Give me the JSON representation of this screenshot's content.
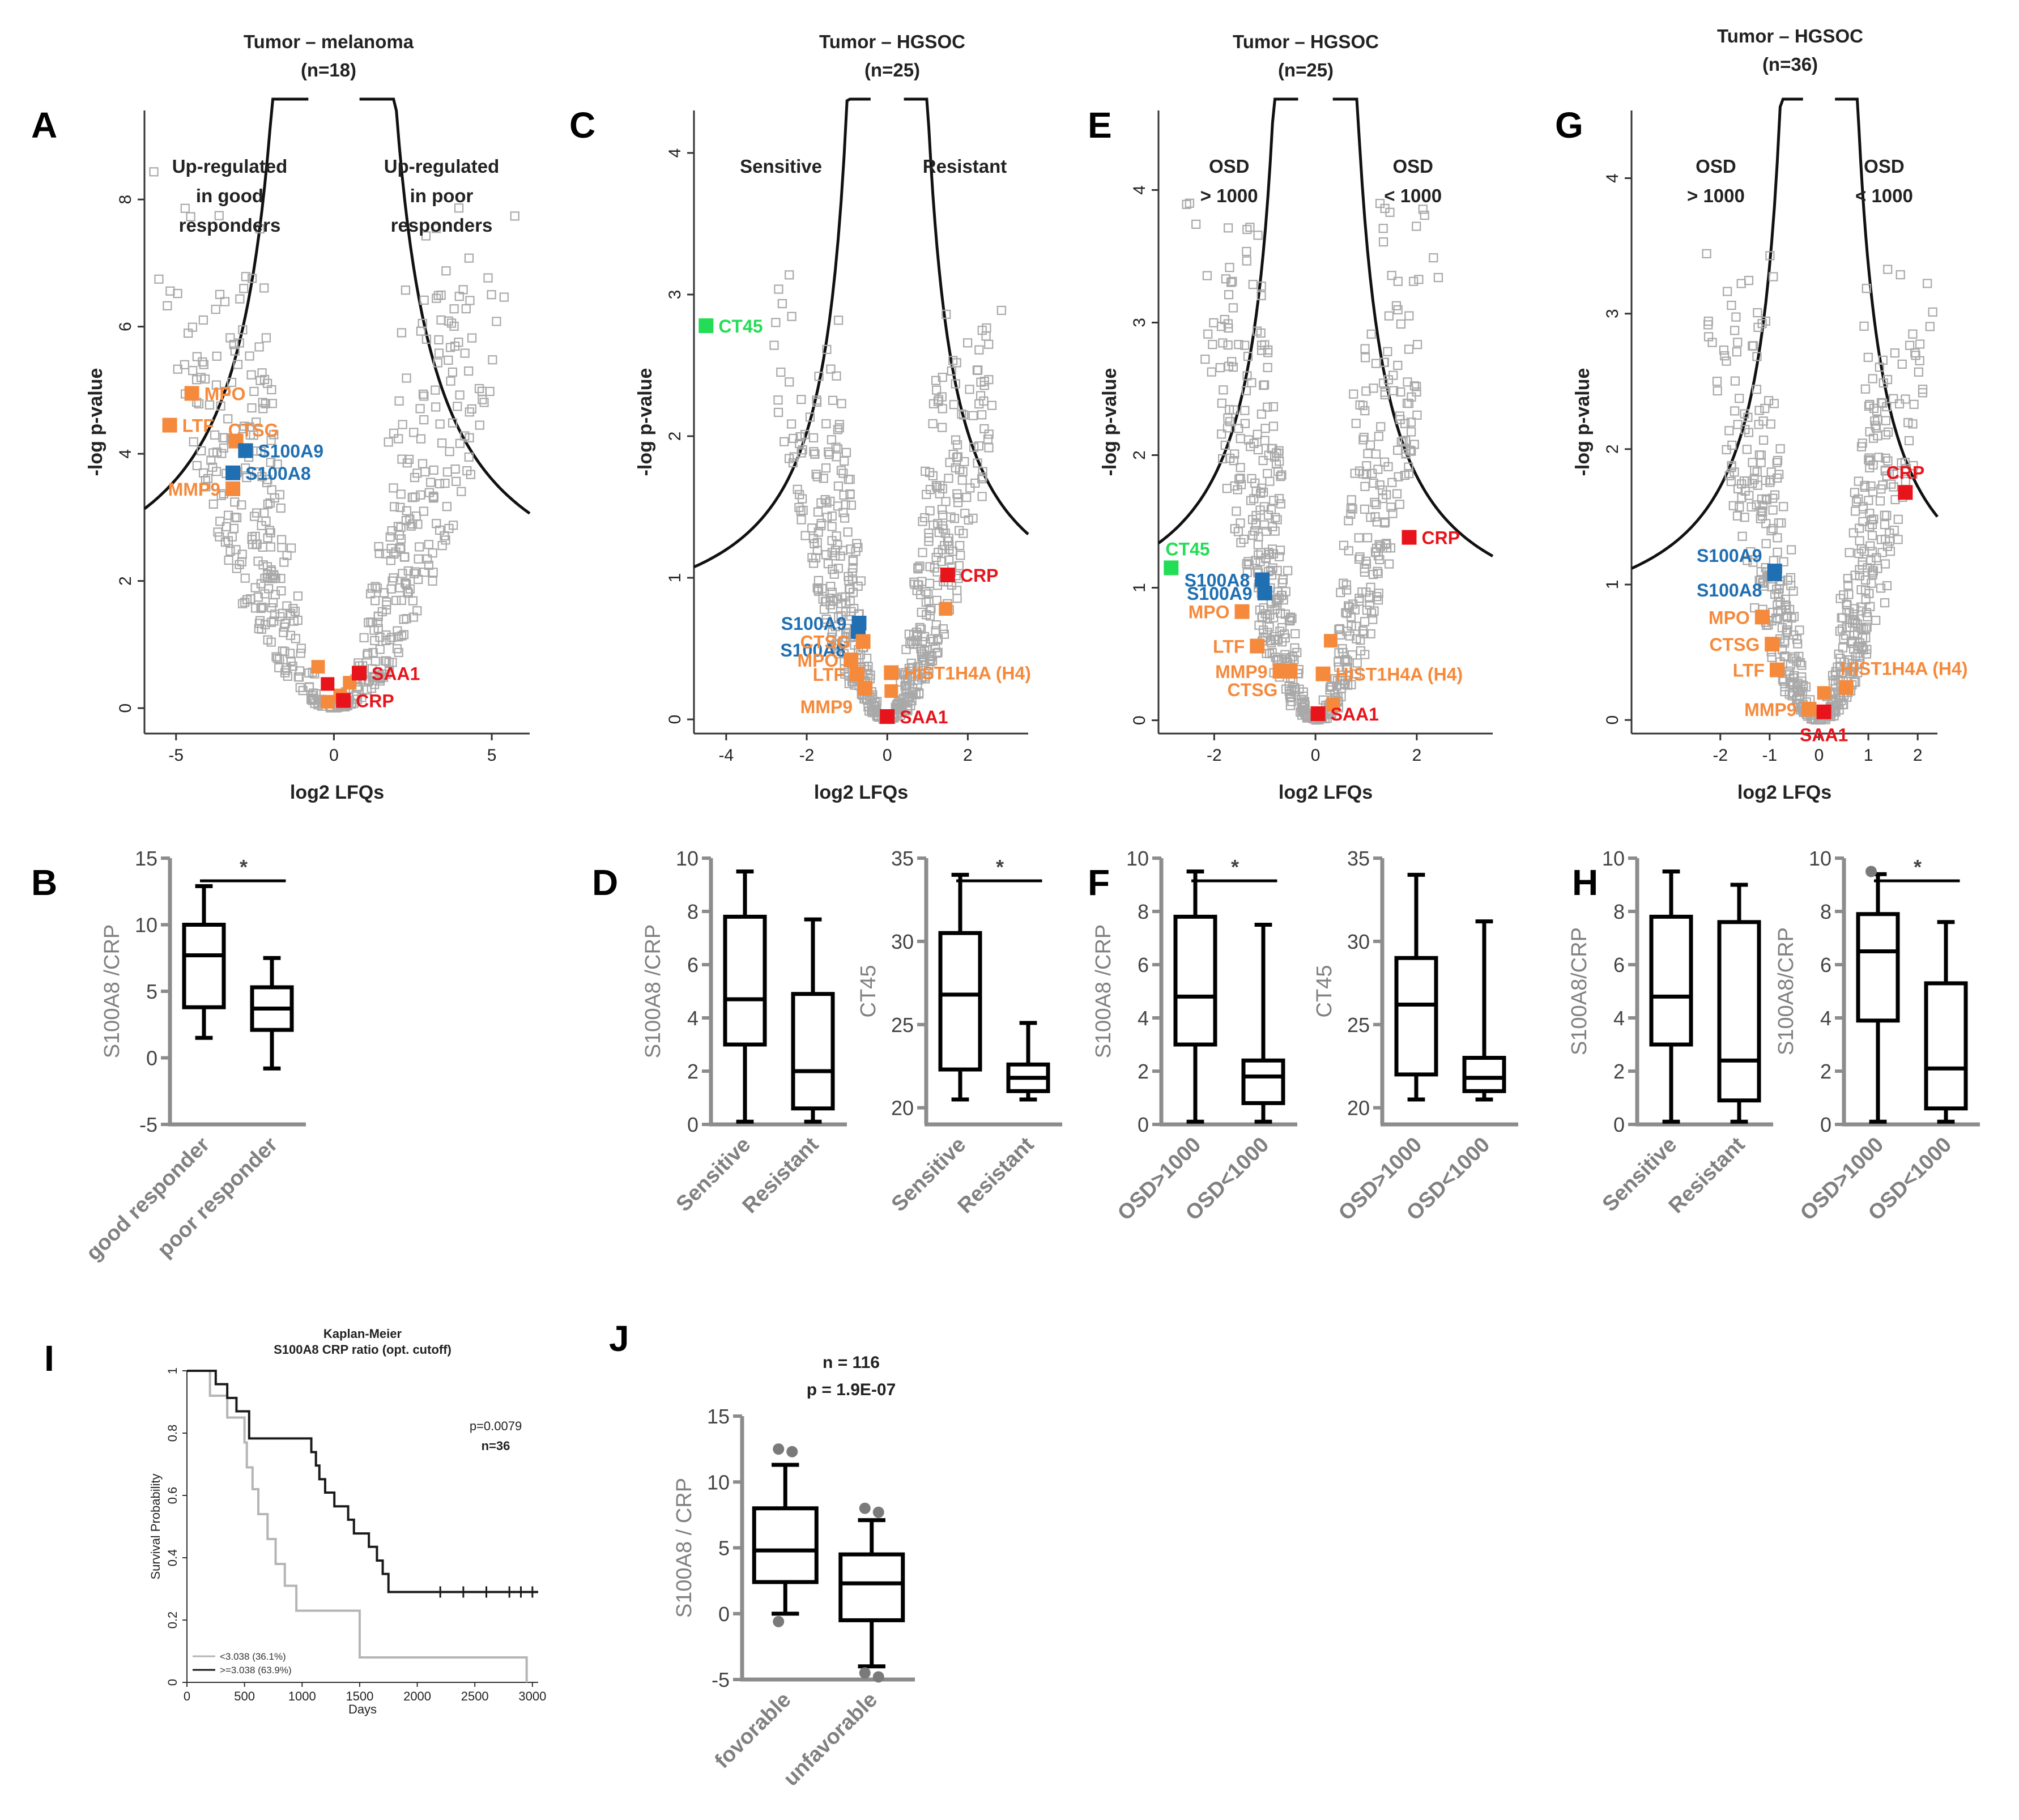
{
  "figure_labels": {
    "A": "A",
    "B": "B",
    "C": "C",
    "D": "D",
    "E": "E",
    "F": "F",
    "G": "G",
    "H": "H",
    "I": "I",
    "J": "J"
  },
  "titles": {
    "A": {
      "line1": "Tumor – melanoma",
      "line2": "(n=18)"
    },
    "C": {
      "line1": "Tumor – HGSOC",
      "line2": "(n=25)"
    },
    "E": {
      "line1": "Tumor – HGSOC",
      "line2": "(n=25)"
    },
    "G": {
      "line1": "Tumor – HGSOC",
      "line2": "(n=36)"
    }
  },
  "colors": {
    "grey": "#a9a9a9",
    "orange": "#f58a3c",
    "blue": "#1f6fb2",
    "red": "#e8141c",
    "green": "#22dd55",
    "axis_grey": "#8c8c8c",
    "km_light": "#b5b5b5",
    "km_dark": "#1a1a1a"
  },
  "chart_data": [
    {
      "id": "A",
      "type": "scatter",
      "subtype": "volcano",
      "xlabel": "log2 LFQs",
      "ylabel": "-log p-value",
      "xlim": [
        -6,
        6.2
      ],
      "ylim": [
        -0.4,
        9.4
      ],
      "xticks": [
        -5,
        0,
        5
      ],
      "yticks": [
        0,
        2,
        4,
        6,
        8
      ],
      "regions": {
        "left": [
          "Up-regulated",
          "in good",
          "responders"
        ],
        "right": [
          "Up-regulated",
          "in poor",
          "responders"
        ]
      },
      "cloud": {
        "shape": "V",
        "x_spread": 4.5,
        "y_max": 8.5
      },
      "highlights": [
        {
          "label": "MPO",
          "x": -4.5,
          "y": 4.95,
          "color": "orange",
          "side": "right"
        },
        {
          "label": "LTF",
          "x": -5.2,
          "y": 4.45,
          "color": "orange",
          "side": "right"
        },
        {
          "label": "CTSG",
          "x": -3.1,
          "y": 4.2,
          "color": "orange",
          "side": "none"
        },
        {
          "label": "S100A9",
          "x": -2.8,
          "y": 4.05,
          "color": "blue",
          "side": "right"
        },
        {
          "label": "S100A8",
          "x": -3.2,
          "y": 3.7,
          "color": "blue",
          "side": "right"
        },
        {
          "label": "MMP9",
          "x": -3.2,
          "y": 3.45,
          "color": "orange",
          "side": "left"
        },
        {
          "label": "SAA1",
          "x": 0.8,
          "y": 0.55,
          "color": "red",
          "side": "right"
        },
        {
          "label": "CRP",
          "x": 0.3,
          "y": 0.12,
          "color": "red",
          "side": "right"
        }
      ],
      "extra_points": [
        {
          "x": -0.5,
          "y": 0.65,
          "color": "orange"
        },
        {
          "x": 0.5,
          "y": 0.4,
          "color": "orange"
        },
        {
          "x": 0.2,
          "y": 0.2,
          "color": "orange"
        },
        {
          "x": -0.2,
          "y": 0.1,
          "color": "orange"
        },
        {
          "x": -0.2,
          "y": 0.38,
          "color": "red"
        }
      ]
    },
    {
      "id": "C",
      "type": "scatter",
      "subtype": "volcano",
      "xlabel": "log2 LFQs",
      "ylabel": "-log p-value",
      "xlim": [
        -4.8,
        3.5
      ],
      "ylim": [
        -0.1,
        4.3
      ],
      "xticks": [
        -4,
        -2,
        0,
        2
      ],
      "yticks": [
        0,
        1,
        2,
        3,
        4
      ],
      "regions": {
        "left": [
          "Sensitive"
        ],
        "right": [
          "Resistant"
        ]
      },
      "cloud": {
        "shape": "V",
        "x_spread": 2.3,
        "y_max": 3.2
      },
      "highlights": [
        {
          "label": "CT45",
          "x": -4.5,
          "y": 2.78,
          "color": "green",
          "side": "right"
        },
        {
          "label": "S100A9",
          "x": -0.7,
          "y": 0.68,
          "color": "blue",
          "side": "left"
        },
        {
          "label": "S100A8",
          "x": -0.72,
          "y": 0.62,
          "color": "blue",
          "side": "left-low"
        },
        {
          "label": "CTSG",
          "x": -0.6,
          "y": 0.55,
          "color": "orange",
          "side": "left"
        },
        {
          "label": "MPO",
          "x": -0.9,
          "y": 0.42,
          "color": "orange",
          "side": "left"
        },
        {
          "label": "LTF",
          "x": -0.75,
          "y": 0.32,
          "color": "orange",
          "side": "left"
        },
        {
          "label": "MMP9",
          "x": -0.55,
          "y": 0.22,
          "color": "orange",
          "side": "left-low"
        },
        {
          "label": "HIST1H4A (H4)",
          "x": 0.1,
          "y": 0.33,
          "color": "orange",
          "side": "right"
        },
        {
          "label": "CRP",
          "x": 1.5,
          "y": 1.02,
          "color": "red",
          "side": "right"
        },
        {
          "label": "SAA1",
          "x": 0.0,
          "y": 0.02,
          "color": "red",
          "side": "right"
        }
      ],
      "extra_points": [
        {
          "x": 1.45,
          "y": 0.78,
          "color": "orange"
        },
        {
          "x": 0.1,
          "y": 0.2,
          "color": "orange"
        }
      ]
    },
    {
      "id": "E",
      "type": "scatter",
      "subtype": "volcano",
      "xlabel": "log2 LFQs",
      "ylabel": "-log p-value",
      "xlim": [
        -3.1,
        3.5
      ],
      "ylim": [
        -0.1,
        4.6
      ],
      "xticks": [
        -2,
        0,
        2
      ],
      "yticks": [
        0,
        1,
        2,
        3,
        4
      ],
      "regions": {
        "left": [
          "OSD",
          "> 1000"
        ],
        "right": [
          "OSD",
          "< 1000"
        ]
      },
      "cloud": {
        "shape": "V",
        "x_spread": 1.9,
        "y_max": 4.2
      },
      "highlights": [
        {
          "label": "CT45",
          "x": -2.85,
          "y": 1.15,
          "color": "green",
          "side": "right-up"
        },
        {
          "label": "S100A8",
          "x": -1.05,
          "y": 1.06,
          "color": "blue",
          "side": "left"
        },
        {
          "label": "S100A9",
          "x": -1.0,
          "y": 0.96,
          "color": "blue",
          "side": "left"
        },
        {
          "label": "MPO",
          "x": -1.45,
          "y": 0.82,
          "color": "orange",
          "side": "left"
        },
        {
          "label": "LTF",
          "x": -1.15,
          "y": 0.56,
          "color": "orange",
          "side": "left"
        },
        {
          "label": "MMP9",
          "x": -0.7,
          "y": 0.37,
          "color": "orange",
          "side": "left"
        },
        {
          "label": "CTSG",
          "x": -0.5,
          "y": 0.37,
          "color": "orange",
          "side": "left-low"
        },
        {
          "label": "HIST1H4A (H4)",
          "x": 0.15,
          "y": 0.35,
          "color": "orange",
          "side": "right"
        },
        {
          "label": "CRP",
          "x": 1.85,
          "y": 1.38,
          "color": "red",
          "side": "right"
        },
        {
          "label": "SAA1",
          "x": 0.05,
          "y": 0.05,
          "color": "red",
          "side": "right"
        }
      ],
      "extra_points": [
        {
          "x": 0.3,
          "y": 0.6,
          "color": "orange"
        },
        {
          "x": 0.35,
          "y": 0.12,
          "color": "orange"
        }
      ]
    },
    {
      "id": "G",
      "type": "scatter",
      "subtype": "volcano",
      "xlabel": "log2 LFQs",
      "ylabel": "-log p-value",
      "xlim": [
        -3.8,
        2.4
      ],
      "ylim": [
        -0.1,
        4.5
      ],
      "xticks": [
        -2,
        -1,
        0,
        1,
        2
      ],
      "yticks": [
        0,
        1,
        2,
        3,
        4
      ],
      "regions": {
        "left": [
          "OSD",
          "> 1000"
        ],
        "right": [
          "OSD",
          "< 1000"
        ]
      },
      "cloud": {
        "shape": "V",
        "x_spread": 1.8,
        "y_max": 3.6
      },
      "highlights": [
        {
          "label": "S100A9",
          "x": -0.9,
          "y": 1.1,
          "color": "blue",
          "side": "left-up"
        },
        {
          "label": "S100A8",
          "x": -0.9,
          "y": 1.08,
          "color": "blue",
          "side": "left-down"
        },
        {
          "label": "MPO",
          "x": -1.15,
          "y": 0.76,
          "color": "orange",
          "side": "left"
        },
        {
          "label": "CTSG",
          "x": -0.95,
          "y": 0.56,
          "color": "orange",
          "side": "left"
        },
        {
          "label": "LTF",
          "x": -0.85,
          "y": 0.37,
          "color": "orange",
          "side": "left"
        },
        {
          "label": "MMP9",
          "x": -0.2,
          "y": 0.08,
          "color": "orange",
          "side": "left"
        },
        {
          "label": "HIST1H4A (H4)",
          "x": 0.55,
          "y": 0.24,
          "color": "orange",
          "side": "right-up"
        },
        {
          "label": "CRP",
          "x": 1.75,
          "y": 1.68,
          "color": "red",
          "side": "up"
        },
        {
          "label": "SAA1",
          "x": 0.1,
          "y": 0.06,
          "color": "red",
          "side": "down"
        }
      ],
      "extra_points": [
        {
          "x": 0.1,
          "y": 0.2,
          "color": "orange"
        }
      ]
    },
    {
      "id": "B",
      "type": "boxplot",
      "ylabel": "S100A8 /CRP",
      "ylim": [
        -5,
        15
      ],
      "yticks": [
        -5,
        0,
        5,
        10,
        15
      ],
      "categories": [
        "good responder",
        "poor responder"
      ],
      "boxes": [
        {
          "min": 1.5,
          "q1": 3.8,
          "median": 7.7,
          "q3": 10.0,
          "max": 12.9
        },
        {
          "min": -0.8,
          "q1": 2.1,
          "median": 3.7,
          "q3": 5.3,
          "max": 7.5
        }
      ],
      "significance": [
        {
          "from": 0,
          "to": 1,
          "label": "*"
        }
      ]
    },
    {
      "id": "D1",
      "type": "boxplot",
      "ylabel": "S100A8 /CRP",
      "ylim": [
        0,
        10
      ],
      "yticks": [
        0,
        2,
        4,
        6,
        8,
        10
      ],
      "categories": [
        "Sensitive",
        "Resistant"
      ],
      "boxes": [
        {
          "min": 0.1,
          "q1": 3.0,
          "median": 4.7,
          "q3": 7.8,
          "max": 9.5
        },
        {
          "min": 0.1,
          "q1": 0.6,
          "median": 2.0,
          "q3": 4.9,
          "max": 7.7
        }
      ],
      "significance": []
    },
    {
      "id": "D2",
      "type": "boxplot",
      "ylabel": "CT45",
      "ylim": [
        19,
        35
      ],
      "yticks": [
        20,
        25,
        30,
        35
      ],
      "categories": [
        "Sensitive",
        "Resistant"
      ],
      "boxes": [
        {
          "min": 20.5,
          "q1": 22.3,
          "median": 26.8,
          "q3": 30.5,
          "max": 34.0
        },
        {
          "min": 20.5,
          "q1": 21.0,
          "median": 21.8,
          "q3": 22.6,
          "max": 25.1
        }
      ],
      "significance": [
        {
          "from": 0,
          "to": 1,
          "label": "*"
        }
      ]
    },
    {
      "id": "F1",
      "type": "boxplot",
      "ylabel": "S100A8 /CRP",
      "ylim": [
        0,
        10
      ],
      "yticks": [
        0,
        2,
        4,
        6,
        8,
        10
      ],
      "categories": [
        "OSD>1000",
        "OSD<1000"
      ],
      "boxes": [
        {
          "min": 0.1,
          "q1": 3.0,
          "median": 4.8,
          "q3": 7.8,
          "max": 9.5
        },
        {
          "min": 0.1,
          "q1": 0.8,
          "median": 1.8,
          "q3": 2.4,
          "max": 7.5
        }
      ],
      "significance": [
        {
          "from": 0,
          "to": 1,
          "label": "*"
        }
      ]
    },
    {
      "id": "F2",
      "type": "boxplot",
      "ylabel": "CT45",
      "ylim": [
        19,
        35
      ],
      "yticks": [
        20,
        25,
        30,
        35
      ],
      "categories": [
        "OSD>1000",
        "OSD<1000"
      ],
      "boxes": [
        {
          "min": 20.5,
          "q1": 22.0,
          "median": 26.2,
          "q3": 29.0,
          "max": 34.0
        },
        {
          "min": 20.5,
          "q1": 21.0,
          "median": 21.8,
          "q3": 23.0,
          "max": 31.2
        }
      ],
      "significance": []
    },
    {
      "id": "H1",
      "type": "boxplot",
      "ylabel": "S100A8/CRP",
      "ylim": [
        0,
        10
      ],
      "yticks": [
        0,
        2,
        4,
        6,
        8,
        10
      ],
      "categories": [
        "Sensitive",
        "Resistant"
      ],
      "boxes": [
        {
          "min": 0.1,
          "q1": 3.0,
          "median": 4.8,
          "q3": 7.8,
          "max": 9.5
        },
        {
          "min": 0.1,
          "q1": 0.9,
          "median": 2.4,
          "q3": 7.6,
          "max": 9.0
        }
      ],
      "significance": []
    },
    {
      "id": "H2",
      "type": "boxplot",
      "ylabel": "S100A8/CRP",
      "ylim": [
        0,
        10
      ],
      "yticks": [
        0,
        2,
        4,
        6,
        8,
        10
      ],
      "categories": [
        "OSD>1000",
        "OSD<1000"
      ],
      "boxes": [
        {
          "min": 0.1,
          "q1": 3.9,
          "median": 6.5,
          "q3": 7.9,
          "max": 9.4,
          "outliers": [
            9.5
          ]
        },
        {
          "min": 0.1,
          "q1": 0.6,
          "median": 2.1,
          "q3": 5.3,
          "max": 7.6
        }
      ],
      "significance": [
        {
          "from": 0,
          "to": 1,
          "label": "*"
        }
      ]
    },
    {
      "id": "J",
      "type": "boxplot",
      "ylabel": "S100A8 / CRP",
      "ylim": [
        -5,
        15
      ],
      "yticks": [
        -5,
        0,
        5,
        10,
        15
      ],
      "categories": [
        "fovorable",
        "unfavorable"
      ],
      "annotation": [
        "n = 116",
        "p = 1.9E-07"
      ],
      "boxes": [
        {
          "min": 0.0,
          "q1": 2.4,
          "median": 4.8,
          "q3": 8.0,
          "max": 11.3,
          "outliers": [
            12.5,
            12.3,
            -0.6
          ]
        },
        {
          "min": -4.0,
          "q1": -0.5,
          "median": 2.3,
          "q3": 4.5,
          "max": 7.1,
          "outliers": [
            8.0,
            7.7,
            -4.5,
            -4.8
          ]
        }
      ],
      "significance": []
    },
    {
      "id": "I",
      "type": "line",
      "subtype": "kaplan-meier",
      "title": [
        "Kaplan-Meier",
        "S100A8 CRP ratio (opt. cutoff)"
      ],
      "xlabel": "Days",
      "ylabel": "Survival Probability",
      "xlim": [
        0,
        3050
      ],
      "ylim": [
        0,
        1
      ],
      "xticks": [
        0,
        500,
        1000,
        1500,
        2000,
        2500,
        3000
      ],
      "yticks": [
        0,
        0.2,
        0.4,
        0.6,
        0.8,
        1
      ],
      "stats": [
        "p=0.0079",
        "n=36"
      ],
      "series": [
        {
          "name": "<3.038 (36.1%)",
          "color": "km_light",
          "x": [
            0,
            150,
            200,
            300,
            350,
            450,
            500,
            520,
            570,
            620,
            700,
            770,
            850,
            950,
            1000,
            1400,
            1500,
            2950,
            2950
          ],
          "y": [
            1.0,
            1.0,
            0.92,
            0.92,
            0.85,
            0.85,
            0.77,
            0.69,
            0.62,
            0.54,
            0.46,
            0.38,
            0.31,
            0.23,
            0.23,
            0.23,
            0.08,
            0.08,
            0.0
          ]
        },
        {
          "name": ">=3.038 (63.9%)",
          "color": "km_dark",
          "x": [
            0,
            200,
            250,
            350,
            430,
            540,
            1050,
            1080,
            1120,
            1150,
            1200,
            1280,
            1400,
            1450,
            1550,
            1580,
            1650,
            1700,
            1750,
            3050
          ],
          "y": [
            1.0,
            1.0,
            0.957,
            0.913,
            0.87,
            0.783,
            0.783,
            0.739,
            0.696,
            0.652,
            0.609,
            0.565,
            0.522,
            0.478,
            0.478,
            0.435,
            0.391,
            0.348,
            0.29,
            0.29
          ],
          "censor": [
            2200,
            2400,
            2600,
            2800,
            2900,
            3000
          ]
        }
      ]
    }
  ]
}
